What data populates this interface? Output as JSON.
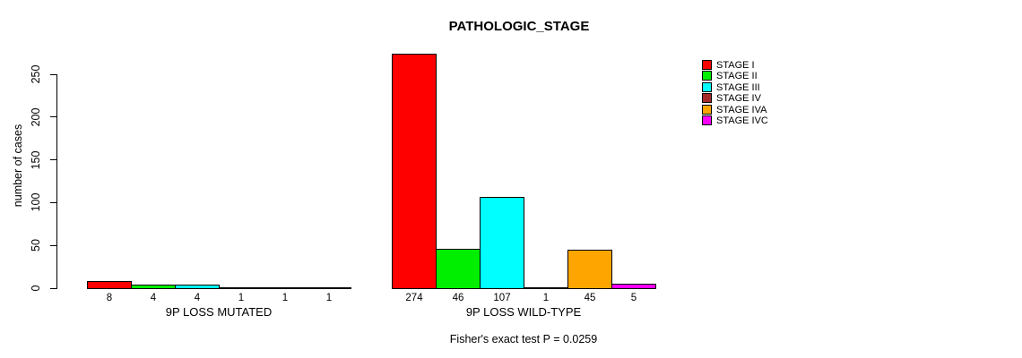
{
  "title": "PATHOLOGIC_STAGE",
  "footer": "Fisher's exact test P = 0.0259",
  "y_axis": {
    "label": "number of cases",
    "ticks": [
      0,
      50,
      100,
      150,
      200,
      250
    ]
  },
  "groups": {
    "mutated_label": "9P LOSS MUTATED",
    "wildtype_label": "9P LOSS WILD-TYPE"
  },
  "legend": {
    "position": "top-right",
    "entries": [
      {
        "label": "STAGE I",
        "color": "#FF0000"
      },
      {
        "label": "STAGE II",
        "color": "#00EE00"
      },
      {
        "label": "STAGE III",
        "color": "#00FFFF"
      },
      {
        "label": "STAGE IV",
        "color": "#A52A2A"
      },
      {
        "label": "STAGE IVA",
        "color": "#FFA500"
      },
      {
        "label": "STAGE IVC",
        "color": "#FF00FF"
      }
    ]
  },
  "chart_data": {
    "type": "bar",
    "title": "PATHOLOGIC_STAGE",
    "xlabel": "",
    "ylabel": "number of cases",
    "ylim": [
      0,
      280
    ],
    "yticks": [
      0,
      50,
      100,
      150,
      200,
      250
    ],
    "grid": false,
    "legend_position": "top-right",
    "categories": [
      "9P LOSS MUTATED",
      "9P LOSS WILD-TYPE"
    ],
    "series": [
      {
        "name": "STAGE I",
        "color": "#FF0000",
        "values": [
          8,
          274
        ]
      },
      {
        "name": "STAGE II",
        "color": "#00EE00",
        "values": [
          4,
          46
        ]
      },
      {
        "name": "STAGE III",
        "color": "#00FFFF",
        "values": [
          4,
          107
        ]
      },
      {
        "name": "STAGE IV",
        "color": "#A52A2A",
        "values": [
          1,
          1
        ]
      },
      {
        "name": "STAGE IVA",
        "color": "#FFA500",
        "values": [
          1,
          45
        ]
      },
      {
        "name": "STAGE IVC",
        "color": "#FF00FF",
        "values": [
          1,
          5
        ]
      }
    ],
    "bar_value_labels": [
      [
        8,
        4,
        4,
        1,
        1,
        1
      ],
      [
        274,
        46,
        107,
        1,
        45,
        5
      ]
    ],
    "annotation": "Fisher's exact test P = 0.0259"
  }
}
